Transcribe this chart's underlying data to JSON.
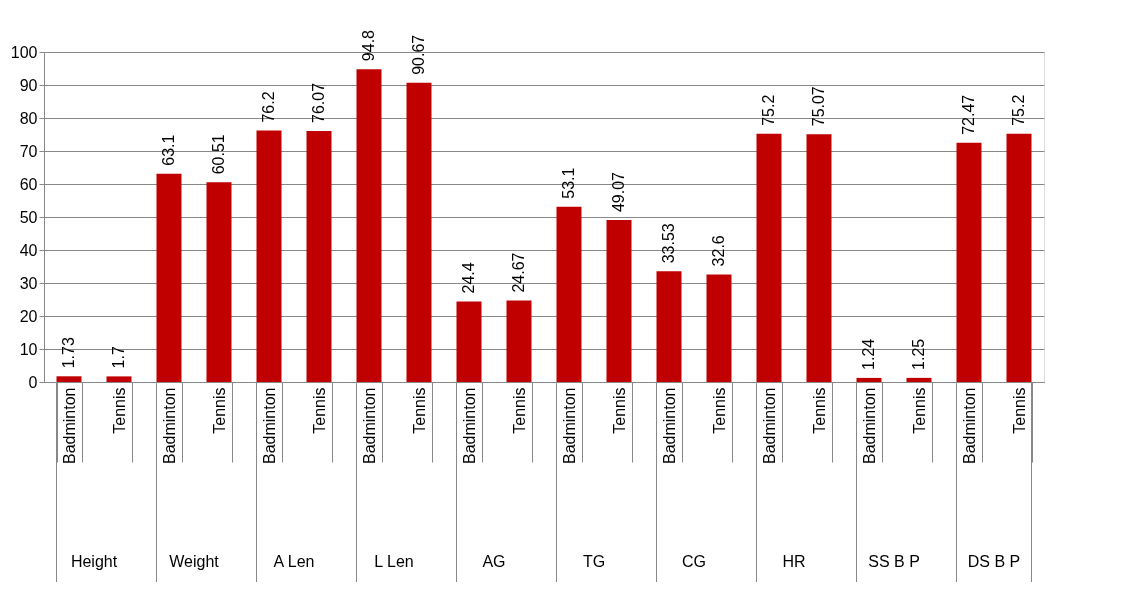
{
  "chart_data": {
    "type": "bar",
    "categories": [
      "Badminton",
      "Tennis",
      "Badminton",
      "Tennis",
      "Badminton",
      "Tennis",
      "Badminton",
      "Tennis",
      "Badminton",
      "Tennis",
      "Badminton",
      "Tennis",
      "Badminton",
      "Tennis",
      "Badminton",
      "Tennis",
      "Badminton",
      "Tennis",
      "Badminton",
      "Tennis"
    ],
    "values": [
      1.73,
      1.7,
      63.1,
      60.51,
      76.2,
      76.07,
      94.8,
      90.67,
      24.4,
      24.67,
      53.1,
      49.07,
      33.53,
      32.6,
      75.2,
      75.07,
      1.24,
      1.25,
      72.47,
      75.2
    ],
    "color": "#c00000",
    "ylim": [
      0,
      100
    ],
    "yticks": [
      0,
      10,
      20,
      30,
      40,
      50,
      60,
      70,
      80,
      90,
      100
    ],
    "grid": "y",
    "data_labels": true,
    "annotations": [
      "Height",
      "Weight",
      "A Len",
      "L Len",
      "AG",
      "TG",
      "CG",
      "HR",
      "SS B P",
      "DS B P"
    ]
  }
}
